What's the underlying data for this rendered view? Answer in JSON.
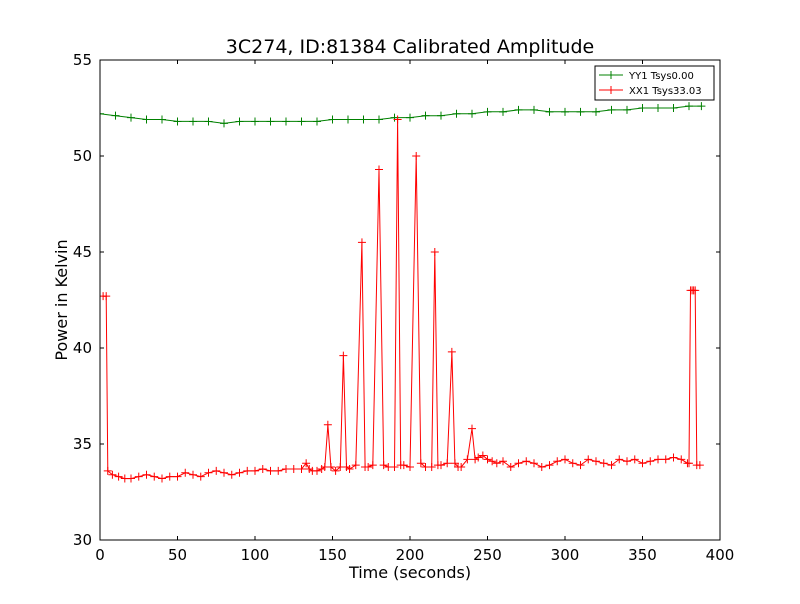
{
  "chart_data": {
    "type": "line",
    "title": "3C274, ID:81384 Calibrated Amplitude",
    "xlabel": "Time (seconds)",
    "ylabel": "Power in Kelvin",
    "xlim": [
      0,
      400
    ],
    "ylim": [
      30,
      55
    ],
    "xticks": [
      0,
      50,
      100,
      150,
      200,
      250,
      300,
      350,
      400
    ],
    "yticks": [
      30,
      35,
      40,
      45,
      50,
      55
    ],
    "grid": false,
    "legend_position": "top-right",
    "series": [
      {
        "name": "YY1 Tsys0.00",
        "color": "#008000",
        "marker": "+",
        "x": [
          0,
          10,
          20,
          30,
          40,
          50,
          60,
          70,
          80,
          90,
          100,
          110,
          120,
          130,
          140,
          150,
          160,
          170,
          180,
          190,
          200,
          210,
          220,
          230,
          240,
          250,
          260,
          270,
          280,
          290,
          300,
          310,
          320,
          330,
          340,
          350,
          360,
          370,
          380,
          388
        ],
        "y": [
          52.2,
          52.1,
          52.0,
          51.9,
          51.9,
          51.8,
          51.8,
          51.8,
          51.7,
          51.8,
          51.8,
          51.8,
          51.8,
          51.8,
          51.8,
          51.9,
          51.9,
          51.9,
          51.9,
          52.0,
          52.0,
          52.1,
          52.1,
          52.2,
          52.2,
          52.3,
          52.3,
          52.4,
          52.4,
          52.3,
          52.3,
          52.3,
          52.3,
          52.4,
          52.4,
          52.5,
          52.5,
          52.5,
          52.6,
          52.6
        ]
      },
      {
        "name": "XX1 Tsys33.03",
        "color": "#ff0000",
        "marker": "+",
        "x": [
          2,
          4,
          5,
          8,
          12,
          16,
          20,
          25,
          30,
          35,
          40,
          45,
          50,
          55,
          60,
          65,
          70,
          75,
          80,
          85,
          90,
          95,
          100,
          105,
          110,
          115,
          120,
          125,
          130,
          133,
          135,
          137,
          140,
          143,
          145,
          147,
          149,
          152,
          155,
          157,
          159,
          161,
          165,
          169,
          171,
          173,
          176,
          180,
          183,
          186,
          190,
          192,
          194,
          196,
          200,
          204,
          207,
          210,
          214,
          216,
          218,
          220,
          224,
          227,
          229,
          231,
          233,
          237,
          240,
          242,
          244,
          247,
          250,
          253,
          256,
          260,
          265,
          270,
          275,
          280,
          285,
          290,
          295,
          300,
          305,
          310,
          315,
          320,
          325,
          330,
          335,
          340,
          345,
          350,
          355,
          360,
          365,
          370,
          375,
          379,
          380,
          381,
          382,
          383,
          384,
          385,
          387
        ],
        "y": [
          42.7,
          42.7,
          33.6,
          33.4,
          33.3,
          33.2,
          33.2,
          33.3,
          33.4,
          33.3,
          33.2,
          33.3,
          33.3,
          33.5,
          33.4,
          33.3,
          33.5,
          33.6,
          33.5,
          33.4,
          33.5,
          33.6,
          33.6,
          33.7,
          33.6,
          33.6,
          33.7,
          33.7,
          33.7,
          34.0,
          33.7,
          33.6,
          33.6,
          33.7,
          33.8,
          36.0,
          33.8,
          33.6,
          33.8,
          39.6,
          33.8,
          33.7,
          33.9,
          45.5,
          33.8,
          33.8,
          33.9,
          49.3,
          33.9,
          33.8,
          33.8,
          51.9,
          33.9,
          33.9,
          33.8,
          50.0,
          34.0,
          33.8,
          33.8,
          45.0,
          33.9,
          33.9,
          34.0,
          39.8,
          34.0,
          33.8,
          33.8,
          34.2,
          35.8,
          34.2,
          34.3,
          34.4,
          34.2,
          34.1,
          34.0,
          34.1,
          33.8,
          34.0,
          34.1,
          34.0,
          33.8,
          33.9,
          34.1,
          34.2,
          34.0,
          33.9,
          34.2,
          34.1,
          34.0,
          33.9,
          34.2,
          34.1,
          34.2,
          34.0,
          34.1,
          34.2,
          34.2,
          34.3,
          34.2,
          34.0,
          34.0,
          43.0,
          43.0,
          43.0,
          43.0,
          33.9,
          33.9
        ]
      }
    ]
  }
}
